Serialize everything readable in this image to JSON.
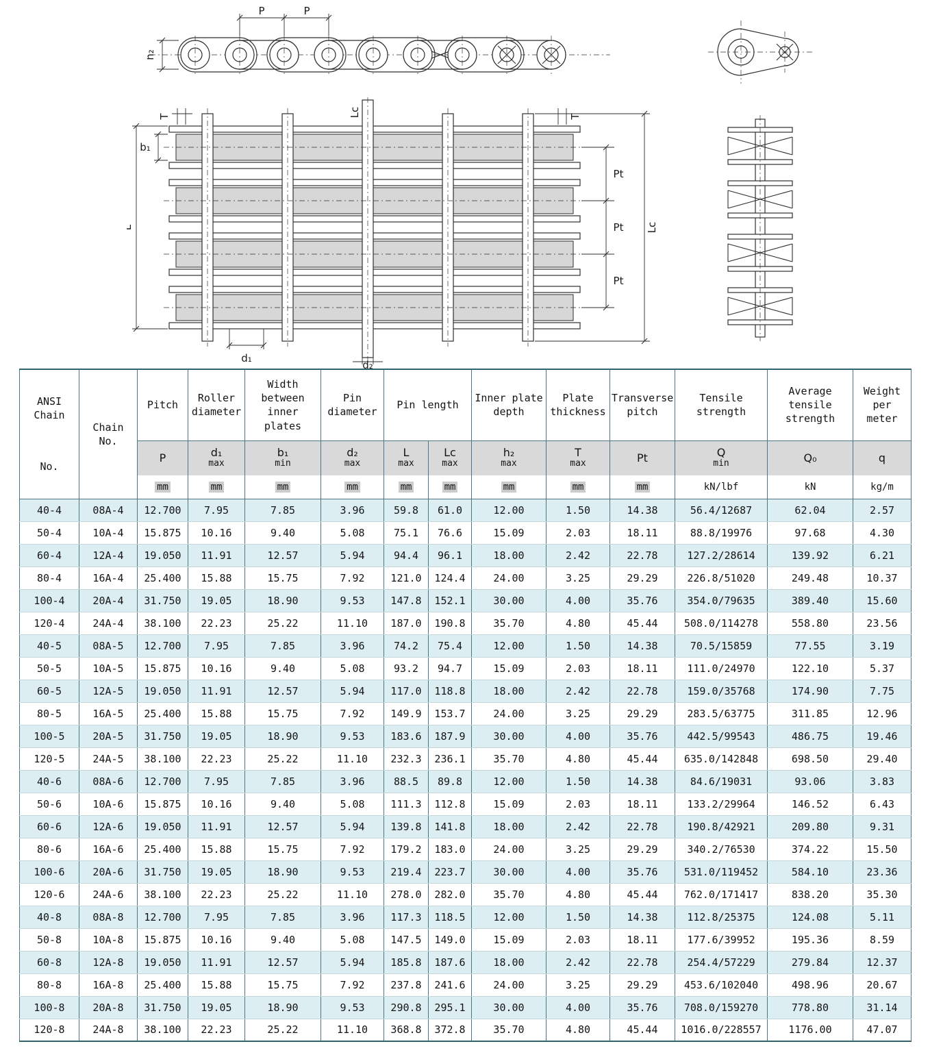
{
  "drawing": {
    "labels": {
      "p_left": "P",
      "p_right": "P",
      "h2": "h₂",
      "t_left": "T",
      "t_right": "T",
      "b1": "b₁",
      "l": "L",
      "lc_center": "Lc",
      "lc_right": "Lc",
      "pt_1": "Pt",
      "pt_2": "Pt",
      "pt_3": "Pt",
      "d1": "d₁",
      "d2": "d₂"
    }
  },
  "table": {
    "header": {
      "ansi_line1": "ANSI",
      "ansi_line2": "Chain",
      "ansi_line3": "No.",
      "chain_line1": "Chain",
      "chain_line2": "No.",
      "groups": {
        "pitch": "Pitch",
        "roller_diameter": "Roller diameter",
        "width_between": "Width between inner plates",
        "pin_diameter": "Pin diameter",
        "pin_length": "Pin length",
        "inner_plate_depth": "Inner plate depth",
        "plate_thickness": "Plate thickness",
        "transverse_pitch": "Transverse pitch",
        "tensile_strength": "Tensile strength",
        "avg_tensile_strength": "Average tensile strength",
        "weight_per_meter": "Weight per meter"
      },
      "symbols": [
        {
          "sym": "P",
          "note": ""
        },
        {
          "sym": "d₁",
          "note": "max"
        },
        {
          "sym": "b₁",
          "note": "min"
        },
        {
          "sym": "d₂",
          "note": "max"
        },
        {
          "sym": "L",
          "note": "max"
        },
        {
          "sym": "Lc",
          "note": "max"
        },
        {
          "sym": "h₂",
          "note": "max"
        },
        {
          "sym": "T",
          "note": "max"
        },
        {
          "sym": "Pt",
          "note": ""
        },
        {
          "sym": "Q",
          "note": "min"
        },
        {
          "sym": "Q₀",
          "note": ""
        },
        {
          "sym": "q",
          "note": ""
        }
      ],
      "units": [
        "mm",
        "mm",
        "mm",
        "mm",
        "mm",
        "mm",
        "mm",
        "mm",
        "mm",
        "kN/lbf",
        "kN",
        "kg/m"
      ]
    },
    "rows": [
      [
        "40-4",
        "08A-4",
        "12.700",
        "7.95",
        "7.85",
        "3.96",
        "59.8",
        "61.0",
        "12.00",
        "1.50",
        "14.38",
        "56.4/12687",
        "62.04",
        "2.57"
      ],
      [
        "50-4",
        "10A-4",
        "15.875",
        "10.16",
        "9.40",
        "5.08",
        "75.1",
        "76.6",
        "15.09",
        "2.03",
        "18.11",
        "88.8/19976",
        "97.68",
        "4.30"
      ],
      [
        "60-4",
        "12A-4",
        "19.050",
        "11.91",
        "12.57",
        "5.94",
        "94.4",
        "96.1",
        "18.00",
        "2.42",
        "22.78",
        "127.2/28614",
        "139.92",
        "6.21"
      ],
      [
        "80-4",
        "16A-4",
        "25.400",
        "15.88",
        "15.75",
        "7.92",
        "121.0",
        "124.4",
        "24.00",
        "3.25",
        "29.29",
        "226.8/51020",
        "249.48",
        "10.37"
      ],
      [
        "100-4",
        "20A-4",
        "31.750",
        "19.05",
        "18.90",
        "9.53",
        "147.8",
        "152.1",
        "30.00",
        "4.00",
        "35.76",
        "354.0/79635",
        "389.40",
        "15.60"
      ],
      [
        "120-4",
        "24A-4",
        "38.100",
        "22.23",
        "25.22",
        "11.10",
        "187.0",
        "190.8",
        "35.70",
        "4.80",
        "45.44",
        "508.0/114278",
        "558.80",
        "23.56"
      ],
      [
        "40-5",
        "08A-5",
        "12.700",
        "7.95",
        "7.85",
        "3.96",
        "74.2",
        "75.4",
        "12.00",
        "1.50",
        "14.38",
        "70.5/15859",
        "77.55",
        "3.19"
      ],
      [
        "50-5",
        "10A-5",
        "15.875",
        "10.16",
        "9.40",
        "5.08",
        "93.2",
        "94.7",
        "15.09",
        "2.03",
        "18.11",
        "111.0/24970",
        "122.10",
        "5.37"
      ],
      [
        "60-5",
        "12A-5",
        "19.050",
        "11.91",
        "12.57",
        "5.94",
        "117.0",
        "118.8",
        "18.00",
        "2.42",
        "22.78",
        "159.0/35768",
        "174.90",
        "7.75"
      ],
      [
        "80-5",
        "16A-5",
        "25.400",
        "15.88",
        "15.75",
        "7.92",
        "149.9",
        "153.7",
        "24.00",
        "3.25",
        "29.29",
        "283.5/63775",
        "311.85",
        "12.96"
      ],
      [
        "100-5",
        "20A-5",
        "31.750",
        "19.05",
        "18.90",
        "9.53",
        "183.6",
        "187.9",
        "30.00",
        "4.00",
        "35.76",
        "442.5/99543",
        "486.75",
        "19.46"
      ],
      [
        "120-5",
        "24A-5",
        "38.100",
        "22.23",
        "25.22",
        "11.10",
        "232.3",
        "236.1",
        "35.70",
        "4.80",
        "45.44",
        "635.0/142848",
        "698.50",
        "29.40"
      ],
      [
        "40-6",
        "08A-6",
        "12.700",
        "7.95",
        "7.85",
        "3.96",
        "88.5",
        "89.8",
        "12.00",
        "1.50",
        "14.38",
        "84.6/19031",
        "93.06",
        "3.83"
      ],
      [
        "50-6",
        "10A-6",
        "15.875",
        "10.16",
        "9.40",
        "5.08",
        "111.3",
        "112.8",
        "15.09",
        "2.03",
        "18.11",
        "133.2/29964",
        "146.52",
        "6.43"
      ],
      [
        "60-6",
        "12A-6",
        "19.050",
        "11.91",
        "12.57",
        "5.94",
        "139.8",
        "141.8",
        "18.00",
        "2.42",
        "22.78",
        "190.8/42921",
        "209.80",
        "9.31"
      ],
      [
        "80-6",
        "16A-6",
        "25.400",
        "15.88",
        "15.75",
        "7.92",
        "179.2",
        "183.0",
        "24.00",
        "3.25",
        "29.29",
        "340.2/76530",
        "374.22",
        "15.50"
      ],
      [
        "100-6",
        "20A-6",
        "31.750",
        "19.05",
        "18.90",
        "9.53",
        "219.4",
        "223.7",
        "30.00",
        "4.00",
        "35.76",
        "531.0/119452",
        "584.10",
        "23.36"
      ],
      [
        "120-6",
        "24A-6",
        "38.100",
        "22.23",
        "25.22",
        "11.10",
        "278.0",
        "282.0",
        "35.70",
        "4.80",
        "45.44",
        "762.0/171417",
        "838.20",
        "35.30"
      ],
      [
        "40-8",
        "08A-8",
        "12.700",
        "7.95",
        "7.85",
        "3.96",
        "117.3",
        "118.5",
        "12.00",
        "1.50",
        "14.38",
        "112.8/25375",
        "124.08",
        "5.11"
      ],
      [
        "50-8",
        "10A-8",
        "15.875",
        "10.16",
        "9.40",
        "5.08",
        "147.5",
        "149.0",
        "15.09",
        "2.03",
        "18.11",
        "177.6/39952",
        "195.36",
        "8.59"
      ],
      [
        "60-8",
        "12A-8",
        "19.050",
        "11.91",
        "12.57",
        "5.94",
        "185.8",
        "187.6",
        "18.00",
        "2.42",
        "22.78",
        "254.4/57229",
        "279.84",
        "12.37"
      ],
      [
        "80-8",
        "16A-8",
        "25.400",
        "15.88",
        "15.75",
        "7.92",
        "237.8",
        "241.6",
        "24.00",
        "3.25",
        "29.29",
        "453.6/102040",
        "498.96",
        "20.67"
      ],
      [
        "100-8",
        "20A-8",
        "31.750",
        "19.05",
        "18.90",
        "9.53",
        "290.8",
        "295.1",
        "30.00",
        "4.00",
        "35.76",
        "708.0/159270",
        "778.80",
        "31.14"
      ],
      [
        "120-8",
        "24A-8",
        "38.100",
        "22.23",
        "25.22",
        "11.10",
        "368.8",
        "372.8",
        "35.70",
        "4.80",
        "45.44",
        "1016.0/228557",
        "1176.00",
        "47.07"
      ]
    ]
  }
}
